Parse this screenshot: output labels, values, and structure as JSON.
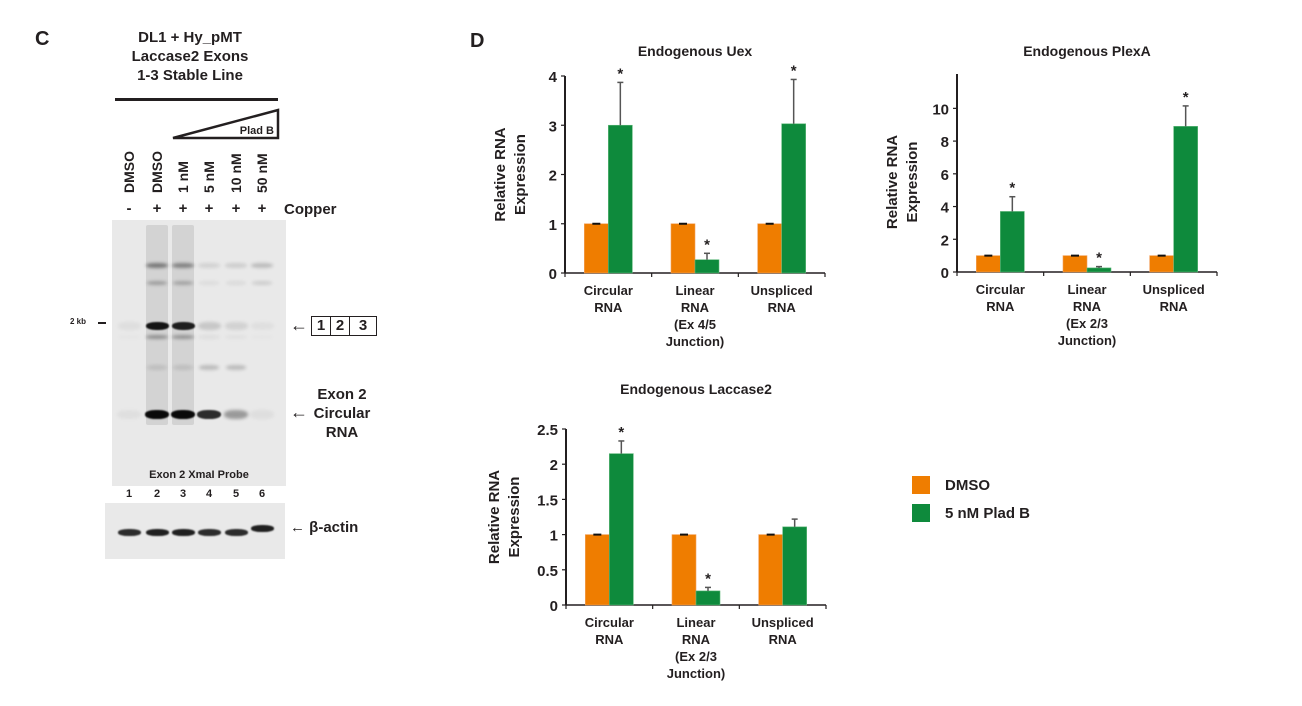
{
  "panel_c": {
    "letter": "C",
    "header_lines": [
      "DL1 + Hy_pMT",
      "Laccase2 Exons",
      "1-3 Stable Line"
    ],
    "treatment_wedge_label": "Plad B",
    "lanes": [
      {
        "number": "1",
        "treatment": "DMSO",
        "copper": "-"
      },
      {
        "number": "2",
        "treatment": "DMSO",
        "copper": "+"
      },
      {
        "number": "3",
        "treatment": "1 nM",
        "copper": "+"
      },
      {
        "number": "4",
        "treatment": "5 nM",
        "copper": "+"
      },
      {
        "number": "5",
        "treatment": "10 nM",
        "copper": "+"
      },
      {
        "number": "6",
        "treatment": "50 nM",
        "copper": "+"
      }
    ],
    "copper_label": "Copper",
    "size_marker": "2 kb",
    "probe_label": "Exon 2 XmaI Probe",
    "probe_color": "#d0203a",
    "linear_band_arrow": "←",
    "exon_boxes": [
      "1",
      "2",
      "3"
    ],
    "circular_band_label": [
      "Exon 2",
      "Circular",
      "RNA"
    ],
    "loading_control_label": "← β-actin",
    "band_intensity": {
      "linear_precursor": [
        0.05,
        0.95,
        0.9,
        0.15,
        0.1,
        0.04
      ],
      "circular": [
        0.04,
        1.0,
        1.0,
        0.85,
        0.35,
        0.05
      ],
      "upper": [
        0.0,
        0.45,
        0.4,
        0.1,
        0.12,
        0.2
      ],
      "beta_actin": [
        0.85,
        0.9,
        0.9,
        0.85,
        0.85,
        0.9
      ]
    }
  },
  "panel_d": {
    "letter": "D",
    "legend": [
      {
        "label": "DMSO",
        "color": "#ef7d00"
      },
      {
        "label": "5 nM Plad B",
        "color": "#0e8a3c"
      }
    ]
  },
  "chart_data": [
    {
      "type": "bar",
      "title": "Endogenous Uex",
      "ylabel": "Relative RNA Expression",
      "xlabel": "",
      "ylim": [
        0,
        4
      ],
      "yticks": [
        "0",
        "1",
        "2",
        "3",
        "4"
      ],
      "categories": [
        [
          "Circular",
          "RNA"
        ],
        [
          "Linear",
          "RNA",
          "(Ex 4/5",
          "Junction)"
        ],
        [
          "Unspliced",
          "RNA"
        ]
      ],
      "series": [
        {
          "name": "DMSO",
          "values": [
            1.0,
            1.0,
            1.0
          ],
          "errors": [
            0.0,
            0.0,
            0.0
          ]
        },
        {
          "name": "5 nM Plad B",
          "values": [
            3.0,
            0.27,
            3.03
          ],
          "errors": [
            0.87,
            0.13,
            0.9
          ]
        }
      ],
      "significance": [
        true,
        true,
        true
      ],
      "legend": "bottom-right (shared)"
    },
    {
      "type": "bar",
      "title": "Endogenous PlexA",
      "ylabel": "Relative RNA Expression",
      "xlabel": "",
      "ylim": [
        0,
        11
      ],
      "yticks": [
        "0",
        "2",
        "4",
        "6",
        "8",
        "10"
      ],
      "categories": [
        [
          "Circular",
          "RNA"
        ],
        [
          "Linear",
          "RNA",
          "(Ex 2/3",
          "Junction)"
        ],
        [
          "Unspliced",
          "RNA"
        ]
      ],
      "series": [
        {
          "name": "DMSO",
          "values": [
            1.0,
            1.0,
            1.0
          ],
          "errors": [
            0.0,
            0.0,
            0.0
          ]
        },
        {
          "name": "5 nM Plad B",
          "values": [
            3.7,
            0.25,
            8.9
          ],
          "errors": [
            0.9,
            0.08,
            1.25
          ]
        }
      ],
      "significance": [
        true,
        true,
        true
      ],
      "legend": "bottom-right (shared)"
    },
    {
      "type": "bar",
      "title": "Endogenous Laccase2",
      "ylabel": "Relative RNA Expression",
      "xlabel": "",
      "ylim": [
        0,
        2.5
      ],
      "yticks": [
        "0",
        "0.5",
        "1",
        "1.5",
        "2",
        "2.5"
      ],
      "categories": [
        [
          "Circular",
          "RNA"
        ],
        [
          "Linear",
          "RNA",
          "(Ex 2/3",
          "Junction)"
        ],
        [
          "Unspliced",
          "RNA"
        ]
      ],
      "series": [
        {
          "name": "DMSO",
          "values": [
            1.0,
            1.0,
            1.0
          ],
          "errors": [
            0.0,
            0.0,
            0.0
          ]
        },
        {
          "name": "5 nM Plad B",
          "values": [
            2.15,
            0.2,
            1.11
          ],
          "errors": [
            0.18,
            0.05,
            0.11
          ]
        }
      ],
      "significance": [
        true,
        true,
        false
      ],
      "legend": "bottom-right (shared)"
    }
  ]
}
